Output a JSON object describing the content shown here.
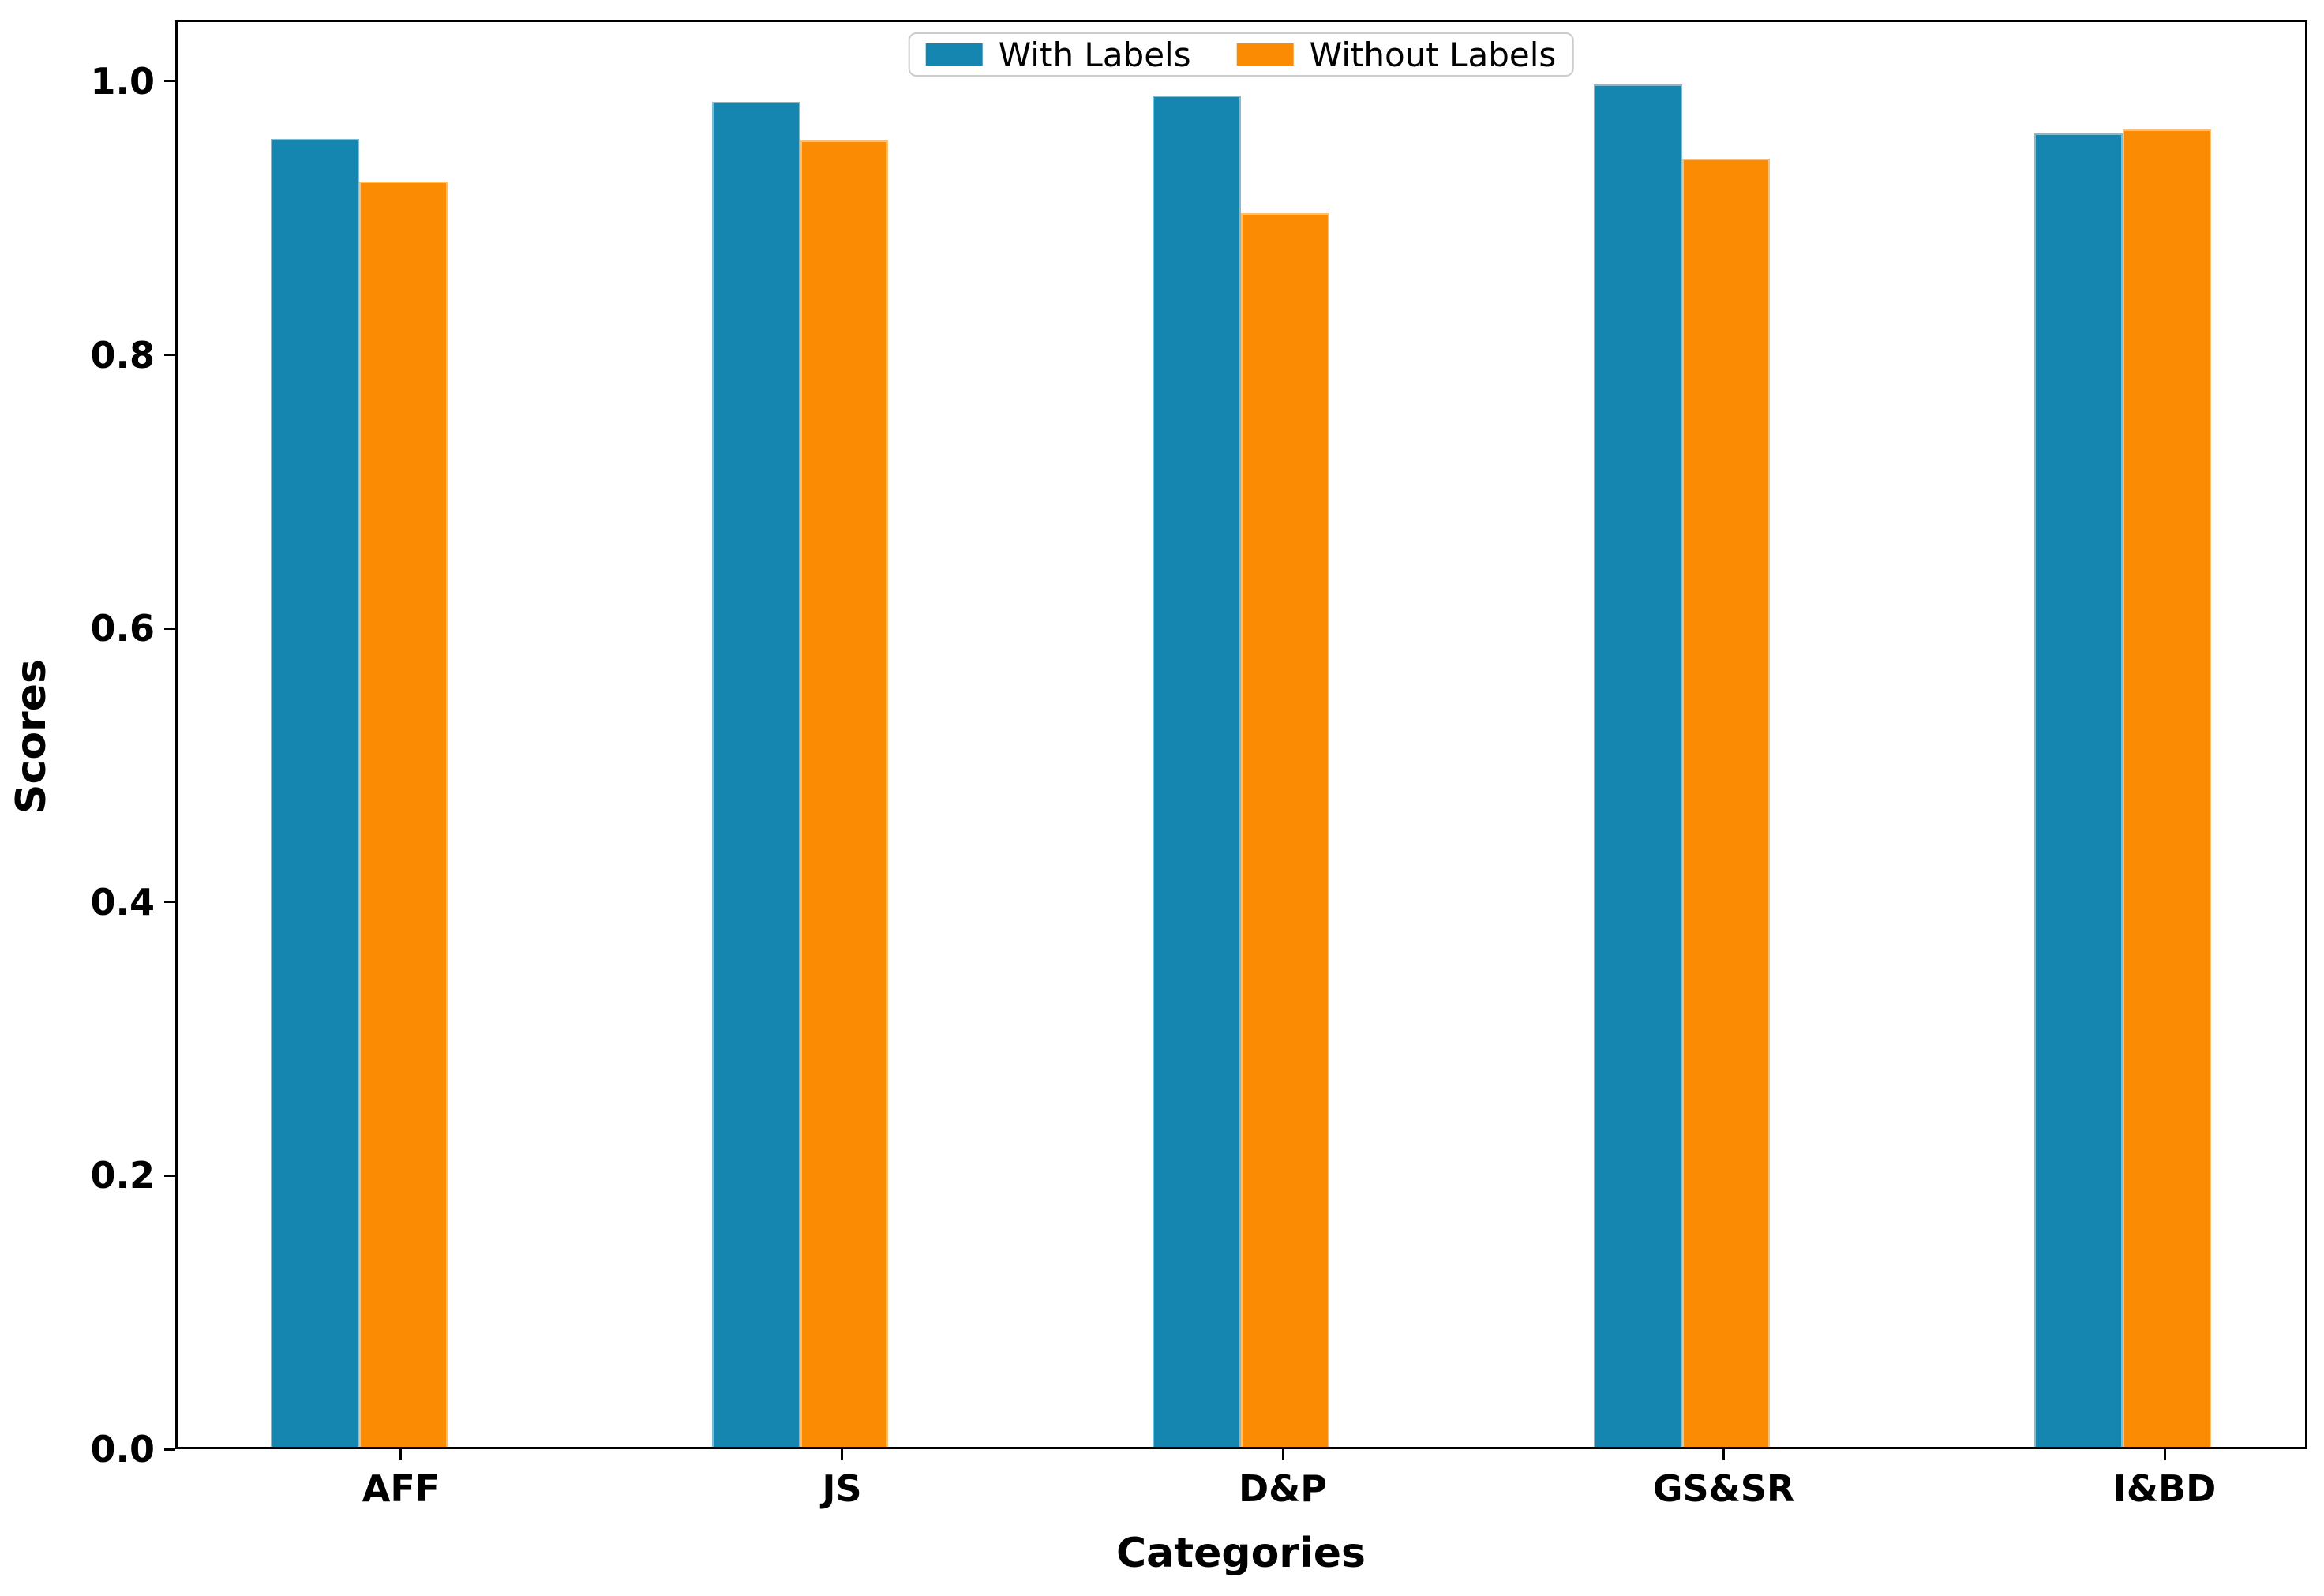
{
  "chart_data": {
    "type": "bar",
    "title": "",
    "xlabel": "Categories",
    "ylabel": "Scores",
    "categories": [
      "AFF",
      "JS",
      "D&P",
      "GS&SR",
      "I&BD"
    ],
    "series": [
      {
        "name": "With Labels",
        "color": "#1486b0",
        "values": [
          0.956,
          0.983,
          0.988,
          0.996,
          0.96
        ]
      },
      {
        "name": "Without Labels",
        "color": "#fb8b02",
        "values": [
          0.925,
          0.955,
          0.902,
          0.942,
          0.963
        ]
      }
    ],
    "yticks": [
      {
        "value": 0.0,
        "label": "0.0"
      },
      {
        "value": 0.2,
        "label": "0.2"
      },
      {
        "value": 0.4,
        "label": "0.4"
      },
      {
        "value": 0.6,
        "label": "0.6"
      },
      {
        "value": 0.8,
        "label": "0.8"
      },
      {
        "value": 1.0,
        "label": "1.0"
      }
    ],
    "ylim": [
      0,
      1.045
    ],
    "xlim": [
      -0.512,
      4.324
    ],
    "bar_width": 0.2,
    "grid": false,
    "legend_position": "upper center",
    "spine_color": "#000000",
    "background_color": "#ffffff"
  }
}
